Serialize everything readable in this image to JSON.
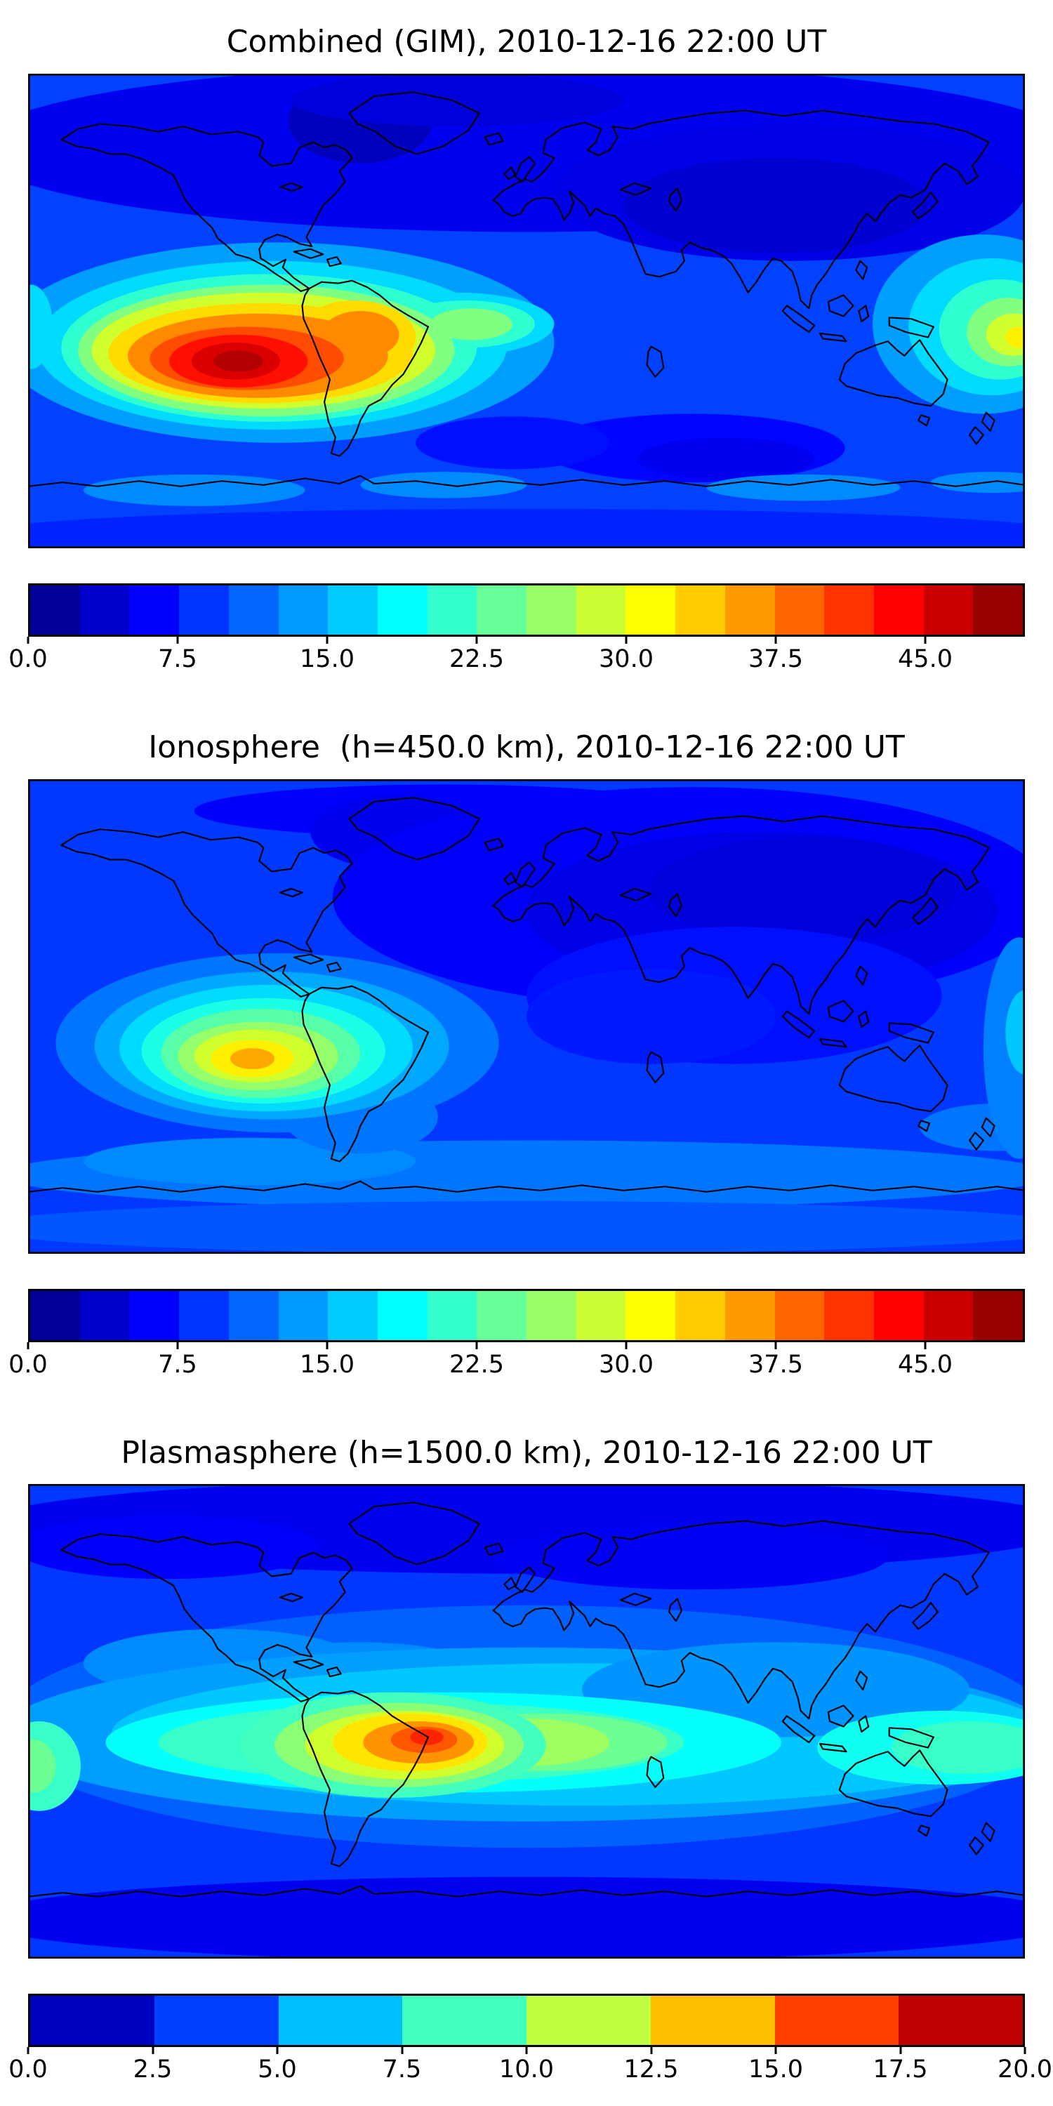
{
  "chart_data": [
    {
      "type": "heatmap",
      "title": "Combined (GIM), 2010-12-16 22:00 UT",
      "projection": "equirectangular",
      "lon_range": [
        -180,
        180
      ],
      "lat_range": [
        -90,
        90
      ],
      "colormap": "jet",
      "vmin": 0,
      "vmax": 50,
      "contour_step": 2.5,
      "colorbar_ticks": [
        0.0,
        7.5,
        15.0,
        22.5,
        30.0,
        37.5,
        45.0
      ],
      "background_value": 9.5,
      "peak": {
        "lon": -104,
        "lat": -19,
        "value": 47.5
      },
      "secondary_peak": {
        "lon": 178,
        "lat": -10,
        "value": 32
      },
      "blob_format": [
        "lon_deg",
        "lat_deg",
        "rx_deg",
        "ry_deg",
        "value"
      ],
      "blobs": [
        [
          0,
          62,
          200,
          32,
          5.5
        ],
        [
          -60,
          72,
          26,
          16,
          3
        ],
        [
          -25,
          80,
          60,
          10,
          4.5
        ],
        [
          95,
          45,
          85,
          26,
          5
        ],
        [
          90,
          40,
          55,
          18,
          4
        ],
        [
          60,
          -52,
          55,
          13,
          6.5
        ],
        [
          72,
          -56,
          32,
          8,
          5.5
        ],
        [
          -5,
          -50,
          35,
          10,
          7
        ],
        [
          0,
          -85,
          200,
          10,
          8
        ],
        [
          -120,
          -68,
          40,
          6,
          13
        ],
        [
          -30,
          -66,
          30,
          5,
          13
        ],
        [
          100,
          -67,
          35,
          5,
          13
        ],
        [
          168,
          -65,
          22,
          4,
          13
        ],
        [
          -90,
          -12,
          100,
          38,
          14
        ],
        [
          -92,
          -13,
          85,
          32,
          17
        ],
        [
          -25,
          -5,
          35,
          12,
          17
        ],
        [
          -93,
          -14,
          75,
          28,
          21
        ],
        [
          -22,
          -5,
          25,
          9,
          21
        ],
        [
          -94,
          -15,
          68,
          25,
          25
        ],
        [
          -20,
          -5,
          15,
          6,
          25
        ],
        [
          -95,
          -15,
          62,
          22,
          29
        ],
        [
          -62,
          -10,
          22,
          14,
          33
        ],
        [
          -96,
          -16,
          55,
          19,
          33
        ],
        [
          -60,
          -9,
          14,
          9,
          37
        ],
        [
          -97,
          -17,
          47,
          16,
          37
        ],
        [
          -101,
          -18,
          35,
          12,
          40
        ],
        [
          -104,
          -19,
          25,
          10,
          43
        ],
        [
          -105,
          -19,
          16,
          7,
          45.5
        ],
        [
          -104,
          -19,
          9,
          4,
          47.5
        ],
        [
          165,
          -5,
          40,
          34,
          14
        ],
        [
          -179,
          -6,
          8,
          16,
          17
        ],
        [
          168,
          -6,
          30,
          26,
          17
        ],
        [
          171,
          -7,
          22,
          19,
          21
        ],
        [
          174,
          -8,
          15,
          13,
          25
        ],
        [
          176,
          -9,
          10,
          8,
          29
        ],
        [
          178,
          -10,
          5,
          4,
          32
        ]
      ]
    },
    {
      "type": "heatmap",
      "title": "Ionosphere  (h=450.0 km), 2010-12-16 22:00 UT",
      "projection": "equirectangular",
      "lon_range": [
        -180,
        180
      ],
      "lat_range": [
        -90,
        90
      ],
      "colormap": "jet",
      "vmin": 0,
      "vmax": 50,
      "contour_step": 2.5,
      "colorbar_ticks": [
        0.0,
        7.5,
        15.0,
        22.5,
        30.0,
        37.5,
        45.0
      ],
      "background_value": 9,
      "peak": {
        "lon": -99,
        "lat": -16,
        "value": 35.5
      },
      "blob_format": [
        "lon_deg",
        "lat_deg",
        "rx_deg",
        "ry_deg",
        "value"
      ],
      "blobs": [
        [
          -30,
          78,
          90,
          10,
          6
        ],
        [
          -48,
          70,
          30,
          14,
          5.5
        ],
        [
          60,
          45,
          130,
          42,
          6
        ],
        [
          85,
          40,
          85,
          30,
          5
        ],
        [
          100,
          48,
          55,
          20,
          4.5
        ],
        [
          75,
          8,
          75,
          26,
          7
        ],
        [
          45,
          0,
          45,
          18,
          7.5
        ],
        [
          0,
          -60,
          190,
          13,
          12
        ],
        [
          0,
          -80,
          200,
          10,
          10.5
        ],
        [
          -100,
          -55,
          60,
          9,
          13
        ],
        [
          -60,
          -38,
          28,
          14,
          12
        ],
        [
          170,
          -42,
          28,
          9,
          12
        ],
        [
          178,
          -12,
          13,
          42,
          12.5
        ],
        [
          180,
          -6,
          7,
          16,
          16
        ],
        [
          -90,
          -10,
          80,
          34,
          12
        ],
        [
          -92,
          -11,
          64,
          28,
          14.5
        ],
        [
          -94,
          -12,
          53,
          24,
          17
        ],
        [
          -95,
          -13,
          44,
          20,
          20
        ],
        [
          -96,
          -14,
          36,
          17,
          23
        ],
        [
          -97,
          -15,
          29,
          13,
          26
        ],
        [
          -98,
          -15,
          22,
          10,
          29
        ],
        [
          -99,
          -16,
          15,
          7,
          32
        ],
        [
          -99,
          -16,
          8,
          4,
          35.5
        ]
      ]
    },
    {
      "type": "heatmap",
      "title": "Plasmasphere (h=1500.0 km), 2010-12-16 22:00 UT",
      "projection": "equirectangular",
      "lon_range": [
        -180,
        180
      ],
      "lat_range": [
        -90,
        90
      ],
      "colormap": "jet",
      "vmin": 0,
      "vmax": 20,
      "contour_step": 2.5,
      "colorbar_ticks": [
        0.0,
        2.5,
        5.0,
        7.5,
        10.0,
        12.5,
        15.0,
        17.5,
        20.0
      ],
      "background_value": 3.6,
      "peak": {
        "lon": -36,
        "lat": -6,
        "value": 16.8
      },
      "blob_format": [
        "lon_deg",
        "lat_deg",
        "rx_deg",
        "ry_deg",
        "value"
      ],
      "blobs": [
        [
          0,
          74,
          200,
          18,
          2.2
        ],
        [
          60,
          62,
          70,
          12,
          2.3
        ],
        [
          -130,
          66,
          55,
          12,
          2.4
        ],
        [
          0,
          -75,
          200,
          16,
          2.2
        ],
        [
          0,
          -2,
          190,
          46,
          4.4
        ],
        [
          -110,
          22,
          50,
          13,
          5.2
        ],
        [
          -60,
          18,
          45,
          12,
          5.2
        ],
        [
          0,
          -5,
          190,
          33,
          5.6
        ],
        [
          20,
          -5,
          170,
          27,
          6.4
        ],
        [
          90,
          12,
          70,
          18,
          5.4
        ],
        [
          -30,
          -8,
          122,
          19,
          7.6
        ],
        [
          -38,
          -8,
          95,
          15,
          8.6
        ],
        [
          150,
          -10,
          45,
          14,
          7.8
        ],
        [
          160,
          -10,
          28,
          10,
          8.6
        ],
        [
          -176,
          -17,
          15,
          17,
          8.6
        ],
        [
          -178,
          -17,
          8,
          10,
          9.6
        ],
        [
          5,
          -8,
          46,
          11,
          9.6
        ],
        [
          0,
          -8,
          30,
          9,
          10.6
        ],
        [
          -48,
          -9,
          55,
          20,
          8.8
        ],
        [
          -46,
          -9,
          45,
          16,
          10.2
        ],
        [
          -44,
          -9,
          36,
          13,
          11.6
        ],
        [
          -42,
          -8,
          28,
          11,
          13
        ],
        [
          -39,
          -8,
          20,
          8,
          14.6
        ],
        [
          -37,
          -7,
          12,
          5,
          15.8
        ],
        [
          -36,
          -6,
          6,
          3,
          16.8
        ]
      ]
    }
  ]
}
